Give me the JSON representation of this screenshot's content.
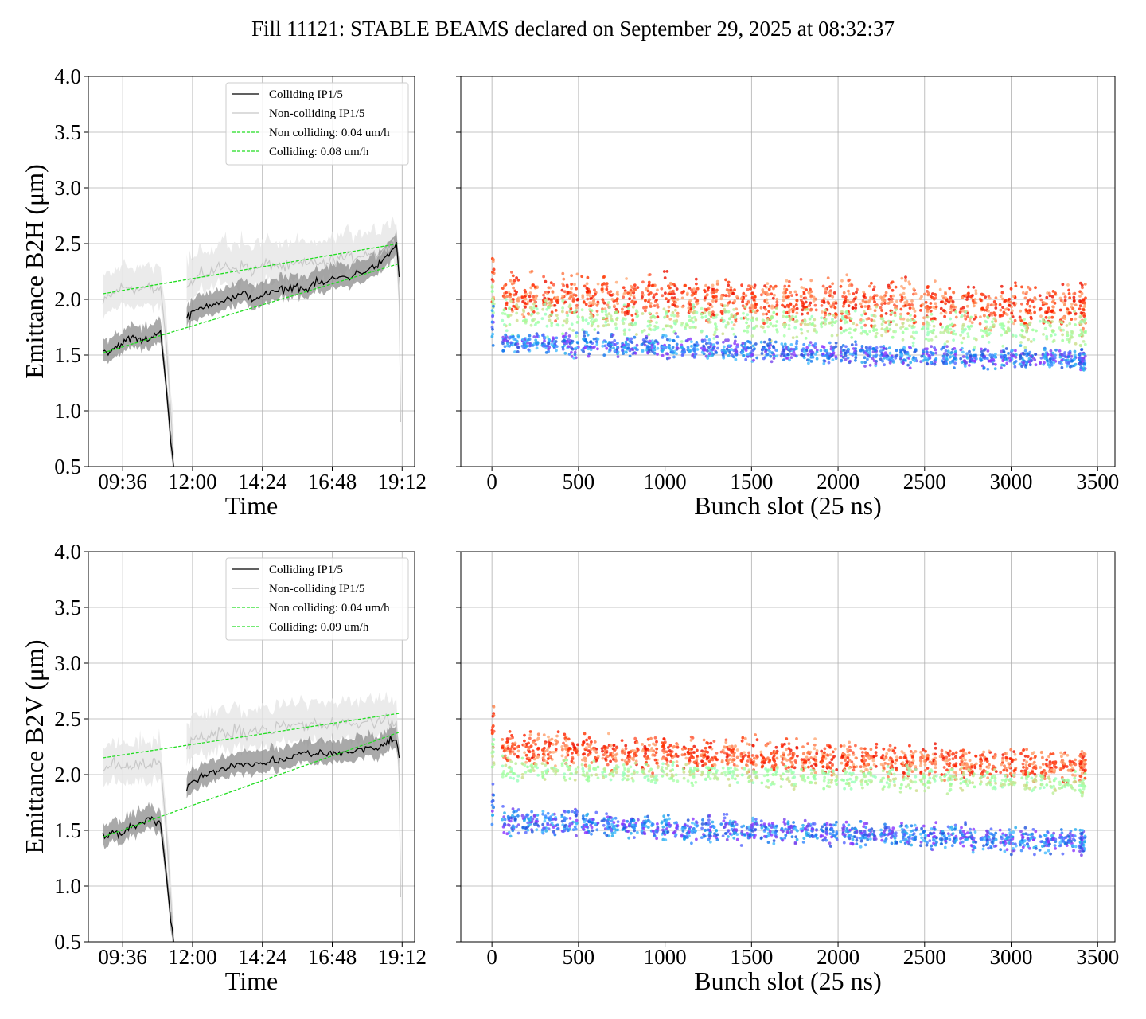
{
  "figure": {
    "title": "Fill 11121: STABLE BEAMS declared on September 29, 2025 at 08:32:37"
  },
  "colors": {
    "colliding": "#000000",
    "colliding_band": "#8c8c8c",
    "noncolliding": "#c8c8c8",
    "noncolliding_band": "#e6e6e6",
    "fit": "#22dd22"
  },
  "chart_data": [
    {
      "type": "line",
      "panel": "top-left",
      "xlabel": "Time",
      "ylabel": "Emittance B2H (μm)",
      "ylim": [
        0.5,
        4.0
      ],
      "yticks": [
        "0.5",
        "1.0",
        "1.5",
        "2.0",
        "2.5",
        "3.0",
        "3.5",
        "4.0"
      ],
      "xlim_hours": [
        8.42,
        19.63
      ],
      "xticks": [
        {
          "label": "09:36",
          "hour": 9.6
        },
        {
          "label": "12:00",
          "hour": 12.0
        },
        {
          "label": "14:24",
          "hour": 14.4
        },
        {
          "label": "16:48",
          "hour": 16.8
        },
        {
          "label": "19:12",
          "hour": 19.2
        }
      ],
      "grid": true,
      "legend_position": "top-right",
      "legend": [
        "Colliding IP1/5",
        "Non-colliding IP1/5",
        "Non colliding: 0.04 um/h",
        "Colliding: 0.08 um/h"
      ],
      "series": [
        {
          "name": "Colliding IP1/5",
          "points": [
            [
              8.92,
              1.55
            ],
            [
              9.1,
              1.52
            ],
            [
              9.3,
              1.56
            ],
            [
              9.5,
              1.6
            ],
            [
              9.7,
              1.62
            ],
            [
              9.9,
              1.66
            ],
            [
              10.1,
              1.64
            ],
            [
              10.3,
              1.63
            ],
            [
              10.5,
              1.65
            ],
            [
              10.7,
              1.67
            ],
            [
              10.9,
              1.72
            ],
            [
              11.1,
              1.2
            ],
            [
              11.25,
              0.75
            ],
            [
              11.35,
              0.5
            ],
            [
              null,
              null
            ],
            [
              11.8,
              1.82
            ],
            [
              12.0,
              1.88
            ],
            [
              12.3,
              1.92
            ],
            [
              12.6,
              1.96
            ],
            [
              12.9,
              1.98
            ],
            [
              13.2,
              2.0
            ],
            [
              13.5,
              2.02
            ],
            [
              13.8,
              2.05
            ],
            [
              14.1,
              2.0
            ],
            [
              14.4,
              2.04
            ],
            [
              14.7,
              2.05
            ],
            [
              15.0,
              2.08
            ],
            [
              15.3,
              2.1
            ],
            [
              15.6,
              2.12
            ],
            [
              15.9,
              2.08
            ],
            [
              16.2,
              2.15
            ],
            [
              16.5,
              2.14
            ],
            [
              16.8,
              2.18
            ],
            [
              17.1,
              2.2
            ],
            [
              17.4,
              2.2
            ],
            [
              17.7,
              2.24
            ],
            [
              18.0,
              2.26
            ],
            [
              18.3,
              2.3
            ],
            [
              18.6,
              2.35
            ],
            [
              18.8,
              2.42
            ],
            [
              19.0,
              2.5
            ],
            [
              19.1,
              2.2
            ]
          ]
        },
        {
          "name": "Non-colliding IP1/5",
          "points": [
            [
              8.92,
              1.95
            ],
            [
              9.1,
              2.02
            ],
            [
              9.3,
              2.05
            ],
            [
              9.5,
              2.1
            ],
            [
              9.7,
              2.1
            ],
            [
              9.9,
              2.12
            ],
            [
              10.1,
              2.08
            ],
            [
              10.3,
              2.1
            ],
            [
              10.5,
              2.1
            ],
            [
              10.7,
              2.08
            ],
            [
              10.9,
              2.12
            ],
            [
              11.1,
              1.6
            ],
            [
              11.25,
              1.0
            ],
            [
              11.35,
              0.6
            ],
            [
              null,
              null
            ],
            [
              11.8,
              2.1
            ],
            [
              12.0,
              2.15
            ],
            [
              12.3,
              2.22
            ],
            [
              12.6,
              2.25
            ],
            [
              12.9,
              2.28
            ],
            [
              13.2,
              2.3
            ],
            [
              13.5,
              2.28
            ],
            [
              13.8,
              2.3
            ],
            [
              14.1,
              2.25
            ],
            [
              14.4,
              2.3
            ],
            [
              14.7,
              2.32
            ],
            [
              15.0,
              2.3
            ],
            [
              15.3,
              2.28
            ],
            [
              15.6,
              2.32
            ],
            [
              15.9,
              2.3
            ],
            [
              16.2,
              2.35
            ],
            [
              16.5,
              2.3
            ],
            [
              16.8,
              2.35
            ],
            [
              17.1,
              2.38
            ],
            [
              17.4,
              2.36
            ],
            [
              17.7,
              2.4
            ],
            [
              18.0,
              2.42
            ],
            [
              18.3,
              2.4
            ],
            [
              18.6,
              2.45
            ],
            [
              18.8,
              2.48
            ],
            [
              19.0,
              2.5
            ],
            [
              19.1,
              2.0
            ],
            [
              19.15,
              0.9
            ]
          ]
        },
        {
          "name": "Non colliding: 0.04 um/h",
          "points": [
            [
              8.92,
              2.05
            ],
            [
              19.1,
              2.5
            ]
          ]
        },
        {
          "name": "Colliding: 0.08 um/h",
          "points": [
            [
              8.92,
              1.52
            ],
            [
              19.1,
              2.32
            ]
          ]
        }
      ]
    },
    {
      "type": "scatter",
      "panel": "top-right",
      "xlabel": "Bunch slot (25 ns)",
      "ylabel": "",
      "ylim": [
        0.5,
        4.0
      ],
      "xlim": [
        -180,
        3600
      ],
      "xticks": [
        "0",
        "500",
        "1000",
        "1500",
        "2000",
        "2500",
        "3000",
        "3500"
      ],
      "grid": true,
      "x_range": [
        0,
        3430
      ],
      "groups": [
        {
          "level_start": 2.05,
          "level_end": 1.92,
          "spread": 0.16,
          "color_scale": "warm"
        },
        {
          "level_start": 1.85,
          "level_end": 1.72,
          "spread": 0.12,
          "color_scale": "green"
        },
        {
          "level_start": 1.62,
          "level_end": 1.45,
          "spread": 0.08,
          "color_scale": "cool"
        }
      ]
    },
    {
      "type": "line",
      "panel": "bottom-left",
      "xlabel": "Time",
      "ylabel": "Emittance B2V (μm)",
      "ylim": [
        0.5,
        4.0
      ],
      "yticks": [
        "0.5",
        "1.0",
        "1.5",
        "2.0",
        "2.5",
        "3.0",
        "3.5",
        "4.0"
      ],
      "xlim_hours": [
        8.42,
        19.63
      ],
      "xticks": [
        {
          "label": "09:36",
          "hour": 9.6
        },
        {
          "label": "12:00",
          "hour": 12.0
        },
        {
          "label": "14:24",
          "hour": 14.4
        },
        {
          "label": "16:48",
          "hour": 16.8
        },
        {
          "label": "19:12",
          "hour": 19.2
        }
      ],
      "grid": true,
      "legend_position": "top-right",
      "legend": [
        "Colliding IP1/5",
        "Non-colliding IP1/5",
        "Non colliding: 0.04 um/h",
        "Colliding: 0.09 um/h"
      ],
      "series": [
        {
          "name": "Colliding IP1/5",
          "points": [
            [
              8.92,
              1.47
            ],
            [
              9.1,
              1.46
            ],
            [
              9.3,
              1.48
            ],
            [
              9.5,
              1.47
            ],
            [
              9.7,
              1.5
            ],
            [
              9.9,
              1.52
            ],
            [
              10.1,
              1.55
            ],
            [
              10.3,
              1.57
            ],
            [
              10.5,
              1.6
            ],
            [
              10.7,
              1.58
            ],
            [
              10.9,
              1.56
            ],
            [
              11.1,
              1.1
            ],
            [
              11.25,
              0.7
            ],
            [
              11.35,
              0.5
            ],
            [
              null,
              null
            ],
            [
              11.8,
              1.88
            ],
            [
              12.0,
              1.95
            ],
            [
              12.3,
              1.98
            ],
            [
              12.6,
              2.02
            ],
            [
              12.9,
              2.05
            ],
            [
              13.2,
              2.07
            ],
            [
              13.5,
              2.08
            ],
            [
              13.8,
              2.08
            ],
            [
              14.1,
              2.1
            ],
            [
              14.4,
              2.1
            ],
            [
              14.7,
              2.12
            ],
            [
              15.0,
              2.12
            ],
            [
              15.3,
              2.15
            ],
            [
              15.6,
              2.18
            ],
            [
              15.9,
              2.2
            ],
            [
              16.2,
              2.17
            ],
            [
              16.5,
              2.2
            ],
            [
              16.8,
              2.2
            ],
            [
              17.1,
              2.18
            ],
            [
              17.4,
              2.2
            ],
            [
              17.7,
              2.22
            ],
            [
              18.0,
              2.24
            ],
            [
              18.3,
              2.22
            ],
            [
              18.6,
              2.28
            ],
            [
              18.8,
              2.32
            ],
            [
              19.0,
              2.3
            ],
            [
              19.1,
              2.15
            ]
          ]
        },
        {
          "name": "Non-colliding IP1/5",
          "points": [
            [
              8.92,
              2.02
            ],
            [
              9.1,
              2.06
            ],
            [
              9.3,
              2.1
            ],
            [
              9.5,
              2.08
            ],
            [
              9.7,
              2.1
            ],
            [
              9.9,
              2.06
            ],
            [
              10.1,
              2.08
            ],
            [
              10.3,
              2.1
            ],
            [
              10.5,
              2.08
            ],
            [
              10.7,
              2.1
            ],
            [
              10.9,
              2.1
            ],
            [
              11.1,
              1.5
            ],
            [
              11.25,
              0.9
            ],
            [
              11.35,
              0.55
            ],
            [
              null,
              null
            ],
            [
              11.8,
              2.25
            ],
            [
              12.0,
              2.3
            ],
            [
              12.3,
              2.35
            ],
            [
              12.6,
              2.36
            ],
            [
              12.9,
              2.38
            ],
            [
              13.2,
              2.36
            ],
            [
              13.5,
              2.4
            ],
            [
              13.8,
              2.38
            ],
            [
              14.1,
              2.4
            ],
            [
              14.4,
              2.42
            ],
            [
              14.7,
              2.4
            ],
            [
              15.0,
              2.44
            ],
            [
              15.3,
              2.42
            ],
            [
              15.6,
              2.45
            ],
            [
              15.9,
              2.42
            ],
            [
              16.2,
              2.46
            ],
            [
              16.5,
              2.44
            ],
            [
              16.8,
              2.45
            ],
            [
              17.1,
              2.46
            ],
            [
              17.4,
              2.44
            ],
            [
              17.7,
              2.46
            ],
            [
              18.0,
              2.48
            ],
            [
              18.3,
              2.46
            ],
            [
              18.6,
              2.5
            ],
            [
              18.8,
              2.48
            ],
            [
              19.0,
              2.48
            ],
            [
              19.1,
              2.0
            ],
            [
              19.15,
              0.9
            ]
          ]
        },
        {
          "name": "Non colliding: 0.04 um/h",
          "points": [
            [
              8.92,
              2.15
            ],
            [
              19.1,
              2.55
            ]
          ]
        },
        {
          "name": "Colliding: 0.09 um/h",
          "points": [
            [
              8.92,
              1.44
            ],
            [
              19.1,
              2.38
            ]
          ]
        }
      ]
    },
    {
      "type": "scatter",
      "panel": "bottom-right",
      "xlabel": "Bunch slot (25 ns)",
      "ylabel": "",
      "ylim": [
        0.5,
        4.0
      ],
      "xlim": [
        -180,
        3600
      ],
      "xticks": [
        "0",
        "500",
        "1000",
        "1500",
        "2000",
        "2500",
        "3000",
        "3500"
      ],
      "grid": true,
      "x_range": [
        0,
        3430
      ],
      "groups": [
        {
          "level_start": 2.24,
          "level_end": 2.08,
          "spread": 0.12,
          "color_scale": "warm"
        },
        {
          "level_start": 2.05,
          "level_end": 1.92,
          "spread": 0.08,
          "color_scale": "green"
        },
        {
          "level_start": 1.58,
          "level_end": 1.4,
          "spread": 0.09,
          "color_scale": "cool"
        }
      ]
    }
  ]
}
